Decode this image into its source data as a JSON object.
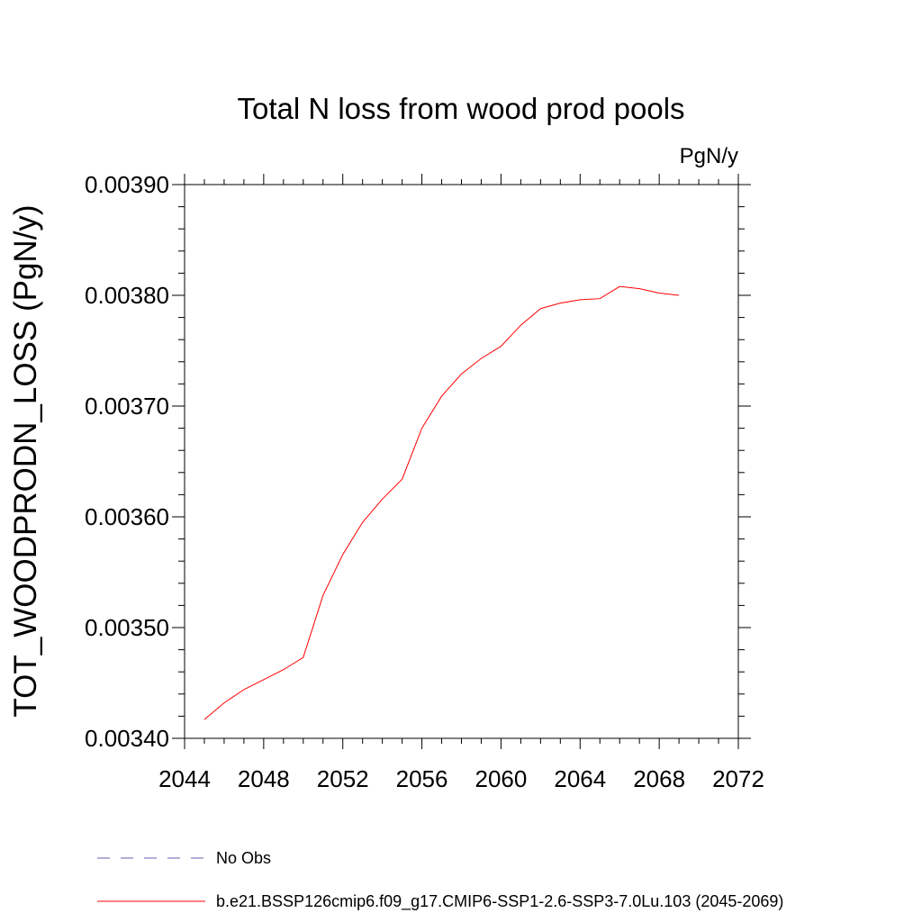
{
  "chart_data": {
    "type": "line",
    "title": "Total N loss from wood prod pools",
    "units": "PgN/y",
    "ylabel": "TOT_WOODPRODN_LOSS  (PgN/y)",
    "xlabel": "",
    "xlim": [
      2044,
      2072
    ],
    "ylim": [
      0.0034,
      0.0039
    ],
    "x_ticks": [
      "2044",
      "2048",
      "2052",
      "2056",
      "2060",
      "2064",
      "2068",
      "2072"
    ],
    "y_ticks": [
      "0.00340",
      "0.00350",
      "0.00360",
      "0.00370",
      "0.00380",
      "0.00390"
    ],
    "x_tick_values": [
      2044,
      2048,
      2052,
      2056,
      2060,
      2064,
      2068,
      2072
    ],
    "y_tick_values": [
      0.0034,
      0.0035,
      0.0036,
      0.0037,
      0.0038,
      0.0039
    ],
    "series": [
      {
        "name": "b.e21.BSSP126cmip6.f09_g17.CMIP6-SSP1-2.6-SSP3-7.0Lu.103 (2045-2069)",
        "color": "#ff0000",
        "style": "solid",
        "x": [
          2045,
          2046,
          2047,
          2048,
          2049,
          2050,
          2051,
          2052,
          2053,
          2054,
          2055,
          2056,
          2057,
          2058,
          2059,
          2060,
          2061,
          2062,
          2063,
          2064,
          2065,
          2066,
          2067,
          2068,
          2069
        ],
        "y": [
          0.003417,
          0.003432,
          0.003444,
          0.003453,
          0.003462,
          0.003473,
          0.003529,
          0.003566,
          0.003595,
          0.003616,
          0.003634,
          0.00368,
          0.003709,
          0.003729,
          0.003743,
          0.003754,
          0.003773,
          0.003788,
          0.003793,
          0.003796,
          0.003797,
          0.003808,
          0.003806,
          0.003802,
          0.0038
        ]
      }
    ],
    "legend": [
      {
        "label": "No Obs",
        "color": "#6b5fb0",
        "style": "dashed"
      },
      {
        "label": "b.e21.BSSP126cmip6.f09_g17.CMIP6-SSP1-2.6-SSP3-7.0Lu.103 (2045-2069)",
        "color": "#ff0000",
        "style": "solid"
      }
    ],
    "legend_position": "bottom",
    "grid": false
  }
}
